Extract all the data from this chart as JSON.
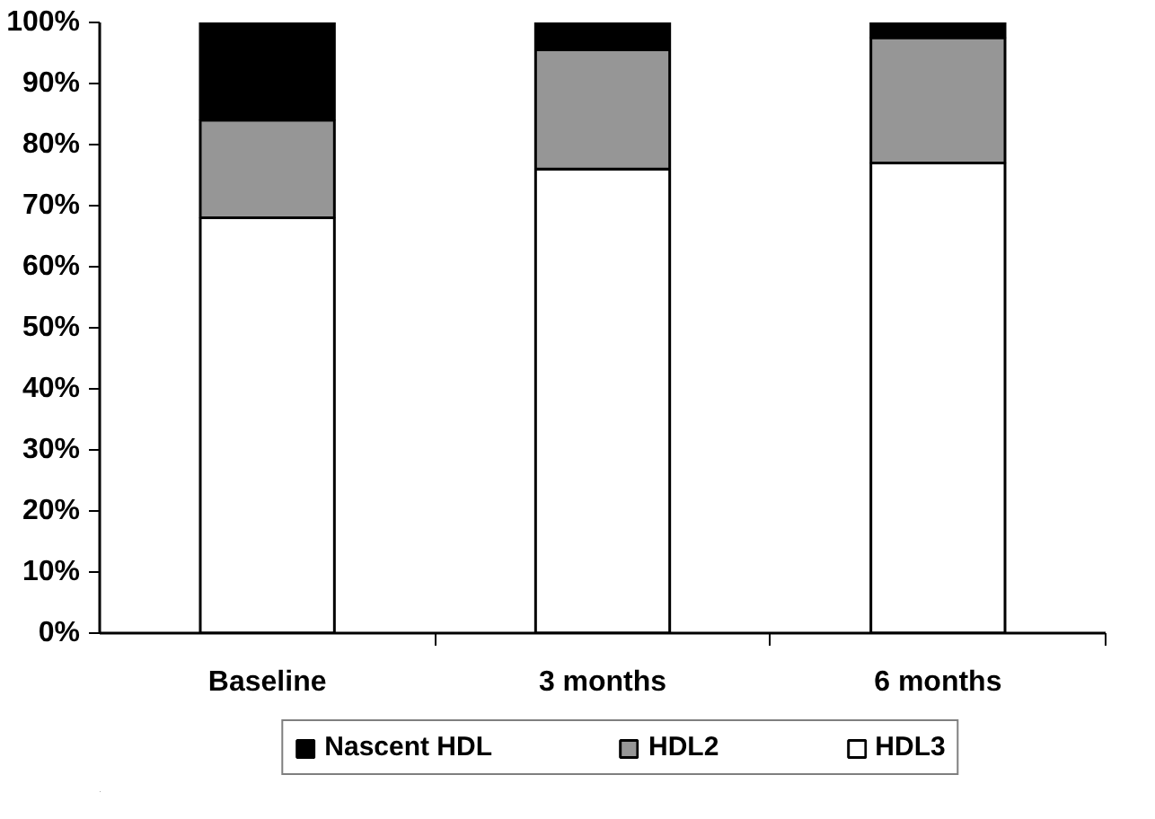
{
  "chart_data": {
    "type": "bar",
    "stacked": true,
    "categories": [
      "Baseline",
      "3 months",
      "6 months"
    ],
    "series": [
      {
        "name": "HDL3",
        "color": "#ffffff",
        "values": [
          68,
          76,
          77
        ]
      },
      {
        "name": "HDL2",
        "color": "#969696",
        "values": [
          16,
          19.5,
          20.5
        ]
      },
      {
        "name": "Nascent HDL",
        "color": "#000000",
        "values": [
          16,
          4.5,
          2.5
        ]
      }
    ],
    "ylim": [
      0,
      100
    ],
    "yticks": [
      {
        "value": 0,
        "label": "0%"
      },
      {
        "value": 10,
        "label": "10%"
      },
      {
        "value": 20,
        "label": "20%"
      },
      {
        "value": 30,
        "label": "30%"
      },
      {
        "value": 40,
        "label": "40%"
      },
      {
        "value": 50,
        "label": "50%"
      },
      {
        "value": 60,
        "label": "60%"
      },
      {
        "value": 70,
        "label": "70%"
      },
      {
        "value": 80,
        "label": "80%"
      },
      {
        "value": 90,
        "label": "90%"
      },
      {
        "value": 100,
        "label": "100%"
      }
    ],
    "grid": false,
    "legend": "bottom"
  }
}
